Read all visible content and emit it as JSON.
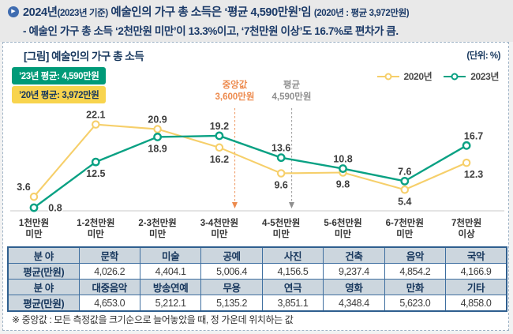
{
  "header": {
    "bullet_glyph": "▶",
    "line1": {
      "year": "2024년",
      "basis": "(2023년 기준)",
      "main": " 예술인의 가구 총 소득은 ‘평균 4,590만원’임 ",
      "compare": "(2020년 : 평균 3,972만원)"
    },
    "line2": "- 예술인 가구 총 소득 ‘2천만원 미만’이 13.3%이고, ‘7천만원 이상’도 16.7%로 편차가 큼.",
    "text_color": "#1b3a68"
  },
  "figure": {
    "title": "[그림] 예술인의 가구 총 소득",
    "unit": "(단위: %)",
    "badges": [
      {
        "text": "’23년 평균: 4,590만원",
        "bg": "#009a78",
        "fg": "#ffffff"
      },
      {
        "text": "’20년 평균: 3,972만원",
        "bg": "#f8d44e",
        "fg": "#17375d"
      }
    ],
    "legend": [
      {
        "label": "2020년",
        "color": "#f6cf6a"
      },
      {
        "label": "2023년",
        "color": "#09a183"
      }
    ]
  },
  "chart_data": {
    "type": "line",
    "title": "[그림] 예술인의 가구 총 소득",
    "unit": "%",
    "grid": false,
    "legend_position": "top-right",
    "ylim": [
      0,
      24
    ],
    "categories": [
      [
        "1천만원",
        "미만"
      ],
      [
        "1-2천만원",
        "미만"
      ],
      [
        "2-3천만원",
        "미만"
      ],
      [
        "3-4천만원",
        "미만"
      ],
      [
        "4-5천만원",
        "미만"
      ],
      [
        "5-6천만원",
        "미만"
      ],
      [
        "6-7천만원",
        "미만"
      ],
      [
        "7천만원",
        "이상"
      ]
    ],
    "series": [
      {
        "name": "2020년",
        "color": "#f6cf6a",
        "values": [
          3.6,
          22.1,
          20.9,
          16.2,
          9.6,
          9.8,
          5.4,
          12.3
        ]
      },
      {
        "name": "2023년",
        "color": "#09a183",
        "values": [
          0.8,
          12.5,
          18.9,
          19.2,
          13.6,
          10.8,
          7.6,
          16.7
        ]
      }
    ],
    "annotations": [
      {
        "title": "중앙값",
        "value": "3,600만원",
        "color": "#ed8a4d",
        "x_index": 3.25
      },
      {
        "title": "평균",
        "value": "4,590만원",
        "color": "#8f8f8f",
        "x_index": 4.17
      }
    ]
  },
  "table": {
    "rows": [
      [
        "분 야",
        "문학",
        "미술",
        "공예",
        "사진",
        "건축",
        "음악",
        "국악"
      ],
      [
        "평균(만원)",
        "4,026.2",
        "4,404.1",
        "5,006.4",
        "4,156.5",
        "9,237.4",
        "4,854.2",
        "4,166.9"
      ],
      [
        "분 야",
        "대중음악",
        "방송연예",
        "무용",
        "연극",
        "영화",
        "만화",
        "기타"
      ],
      [
        "평균(만원)",
        "4,653.0",
        "5,212.1",
        "5,135.2",
        "3,851.1",
        "4,348.4",
        "5,623.0",
        "4,858.0"
      ]
    ]
  },
  "footnote": "※ 중앙값 : 모든 측정값을 크기순으로 늘어놓았을 때, 정 가운데 위치하는 값"
}
